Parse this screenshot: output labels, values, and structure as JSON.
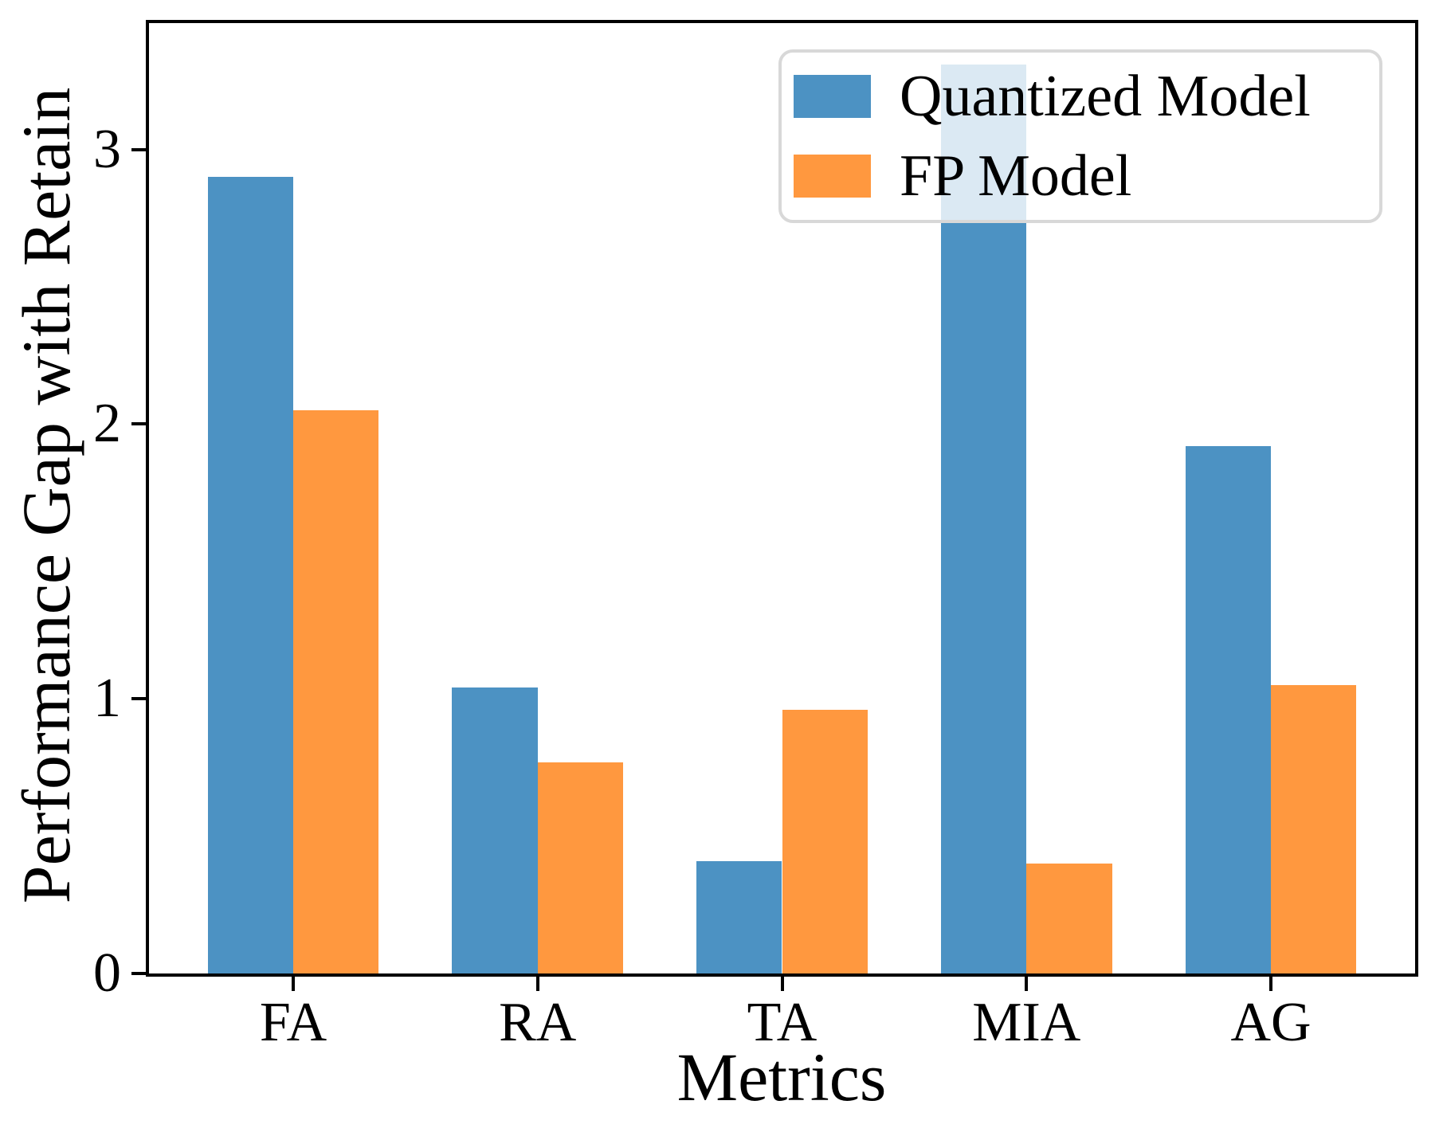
{
  "figure": {
    "background": "#ffffff",
    "axis_color": "#000000",
    "legend_border_color": "#d8d8d8",
    "legend_background": "rgba(255,255,255,0.8)"
  },
  "chart_data": {
    "type": "bar",
    "title": "",
    "xlabel": "Metrics",
    "ylabel": "Performance Gap with Retain",
    "categories": [
      "FA",
      "RA",
      "TA",
      "MIA",
      "AG"
    ],
    "series": [
      {
        "name": "Quantized Model",
        "color": "#4C92C3",
        "values": [
          2.9,
          1.04,
          0.41,
          3.31,
          1.92
        ]
      },
      {
        "name": "FP Model",
        "color": "#FF983F",
        "values": [
          2.05,
          0.77,
          0.96,
          0.4,
          1.05
        ]
      }
    ],
    "yticks": [
      0,
      1,
      2,
      3
    ],
    "ylim": [
      0,
      3.46
    ],
    "xlim": [
      -0.59,
      4.59
    ],
    "bar_width": 0.35,
    "grid": false,
    "legend_position": "upper right"
  }
}
